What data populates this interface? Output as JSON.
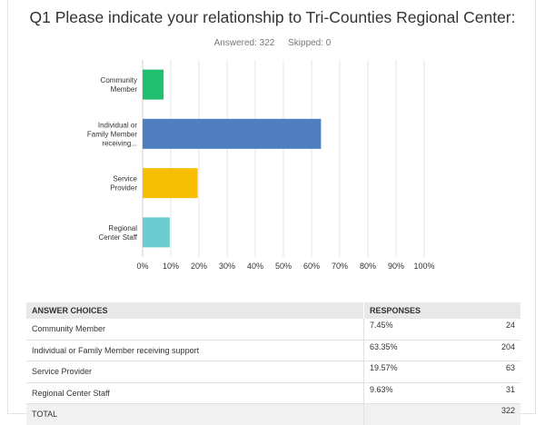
{
  "title": "Q1 Please indicate your relationship to Tri-Counties Regional Center:",
  "answered_label": "Answered: 322",
  "skipped_label": "Skipped: 0",
  "chart_data": {
    "type": "bar",
    "orientation": "horizontal",
    "categories": [
      [
        "Community",
        "Member"
      ],
      [
        "Individual or",
        "Family Member",
        "receiving..."
      ],
      [
        "Service",
        "Provider"
      ],
      [
        "Regional",
        "Center Staff"
      ]
    ],
    "values": [
      7.45,
      63.35,
      19.57,
      9.63
    ],
    "colors": [
      "#21c06e",
      "#4f7ec1",
      "#f8be03",
      "#6ccdd1"
    ],
    "xlim": [
      0,
      100
    ],
    "ticks": [
      "0%",
      "10%",
      "20%",
      "30%",
      "40%",
      "50%",
      "60%",
      "70%",
      "80%",
      "90%",
      "100%"
    ],
    "grid": true
  },
  "table": {
    "headers": [
      "ANSWER CHOICES",
      "RESPONSES"
    ],
    "rows": [
      {
        "choice": "Community Member",
        "pct": "7.45%",
        "count": "24"
      },
      {
        "choice": "Individual or Family Member receiving support",
        "pct": "63.35%",
        "count": "204"
      },
      {
        "choice": "Service Provider",
        "pct": "19.57%",
        "count": "63"
      },
      {
        "choice": "Regional Center Staff",
        "pct": "9.63%",
        "count": "31"
      }
    ],
    "total_label": "TOTAL",
    "total_count": "322"
  }
}
